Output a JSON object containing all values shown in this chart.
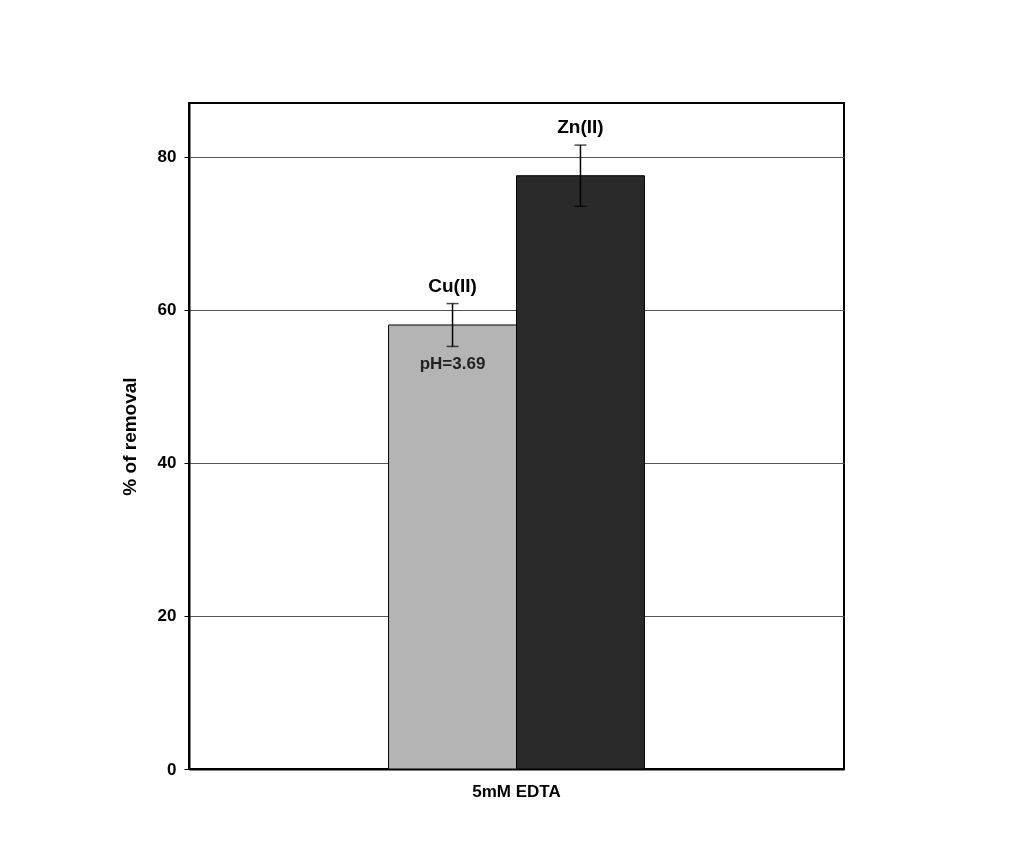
{
  "chart_data": {
    "type": "bar",
    "ylabel": "% of removal",
    "categories": [
      "5mM EDTA"
    ],
    "series": [
      {
        "name": "Cu(II)",
        "color": "#b4b4b4",
        "values": [
          58.0
        ],
        "errors": [
          2.8
        ]
      },
      {
        "name": "Zn(II)",
        "color": "#2a2a2a",
        "values": [
          77.5
        ],
        "errors": [
          4.0
        ]
      }
    ],
    "ylim": [
      0,
      87
    ],
    "yticks": [
      0,
      20,
      40,
      60,
      80
    ],
    "grid": "y",
    "legend": false,
    "annotations": [
      "pH=3.69"
    ]
  }
}
